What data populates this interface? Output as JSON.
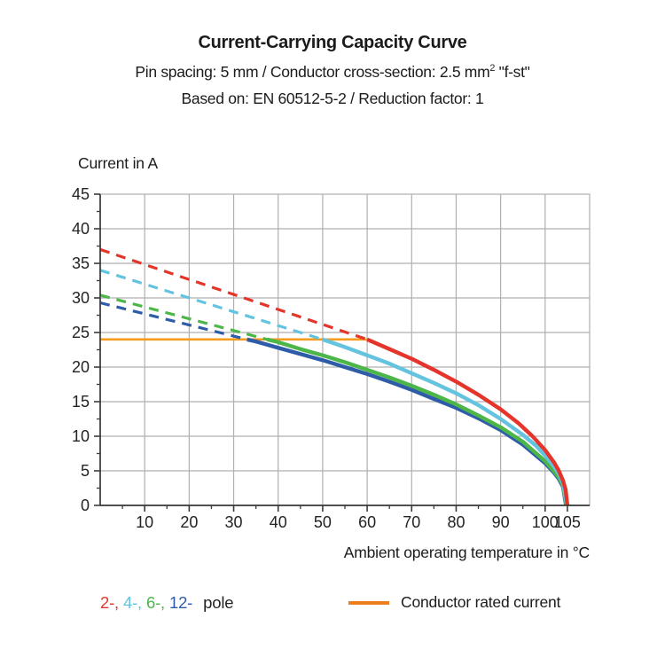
{
  "header": {
    "title": "Current-Carrying Capacity Curve",
    "subtitle_line1": {
      "pre": "Pin spacing: 5 mm / Conductor cross-section: 2.5 mm",
      "sup": "2",
      "post": " \"f-st\""
    },
    "subtitle_line2": "Based on: EN 60512-5-2 / Reduction factor: 1"
  },
  "chart_data": {
    "type": "line",
    "ylabel": "Current in A",
    "xlabel": "Ambient operating temperature in °C",
    "xlim": [
      0,
      110
    ],
    "ylim": [
      0,
      45
    ],
    "x_major_ticks": [
      10,
      20,
      30,
      40,
      50,
      60,
      70,
      80,
      90,
      100,
      105
    ],
    "x_minor_step": 5,
    "y_major_step": 5,
    "y_minor_step": 2.5,
    "grid": {
      "x_step": 10,
      "x_grid_max": 100,
      "y_step": 5,
      "color": "#AFAFAF"
    },
    "axis_color": "#3a3a3a",
    "rated_current": {
      "name": "Conductor rated current",
      "value_A": 24,
      "x_range": [
        0,
        60
      ],
      "color": "#F59B1E"
    },
    "series": [
      {
        "name": "2-pole",
        "color": "#E5352B",
        "dashed_points": [
          [
            0,
            37
          ],
          [
            60,
            24
          ]
        ],
        "solid_points": [
          [
            60,
            24
          ],
          [
            65,
            22.6
          ],
          [
            70,
            21.2
          ],
          [
            75,
            19.6
          ],
          [
            80,
            17.9
          ],
          [
            85,
            16
          ],
          [
            90,
            13.9
          ],
          [
            94,
            11.9
          ],
          [
            97,
            10.1
          ],
          [
            100,
            8
          ],
          [
            102,
            6.2
          ],
          [
            103,
            5.1
          ],
          [
            104,
            3.6
          ],
          [
            104.6,
            2.3
          ],
          [
            105,
            0
          ]
        ]
      },
      {
        "name": "4-pole",
        "color": "#64C3DE",
        "dashed_points": [
          [
            0,
            34
          ],
          [
            50,
            24
          ]
        ],
        "solid_points": [
          [
            50,
            24
          ],
          [
            55,
            22.9
          ],
          [
            60,
            21.7
          ],
          [
            65,
            20.5
          ],
          [
            70,
            19.1
          ],
          [
            75,
            17.7
          ],
          [
            80,
            16.2
          ],
          [
            85,
            14.5
          ],
          [
            90,
            12.5
          ],
          [
            95,
            10.2
          ],
          [
            98,
            8.6
          ],
          [
            100,
            7.2
          ],
          [
            102,
            5.6
          ],
          [
            103,
            4.6
          ],
          [
            104,
            3.2
          ],
          [
            104.9,
            0
          ]
        ]
      },
      {
        "name": "6-pole",
        "color": "#4CB648",
        "dashed_points": [
          [
            0,
            30.4
          ],
          [
            37.5,
            24
          ]
        ],
        "solid_points": [
          [
            37.5,
            24
          ],
          [
            40,
            23.6
          ],
          [
            45,
            22.6
          ],
          [
            50,
            21.7
          ],
          [
            55,
            20.7
          ],
          [
            60,
            19.6
          ],
          [
            65,
            18.5
          ],
          [
            70,
            17.3
          ],
          [
            75,
            16
          ],
          [
            80,
            14.6
          ],
          [
            85,
            13
          ],
          [
            90,
            11.3
          ],
          [
            95,
            9.2
          ],
          [
            100,
            6.4
          ],
          [
            102,
            4.9
          ],
          [
            103,
            4.1
          ],
          [
            104,
            2.9
          ],
          [
            104.8,
            0
          ]
        ]
      },
      {
        "name": "12-pole",
        "color": "#2E5CA8",
        "dashed_points": [
          [
            0,
            29.3
          ],
          [
            33,
            24
          ]
        ],
        "solid_points": [
          [
            33,
            24
          ],
          [
            35,
            23.7
          ],
          [
            40,
            22.8
          ],
          [
            45,
            21.9
          ],
          [
            50,
            21
          ],
          [
            55,
            20
          ],
          [
            60,
            19
          ],
          [
            65,
            17.9
          ],
          [
            70,
            16.7
          ],
          [
            75,
            15.4
          ],
          [
            80,
            14.1
          ],
          [
            85,
            12.6
          ],
          [
            90,
            10.9
          ],
          [
            95,
            8.8
          ],
          [
            100,
            6.1
          ],
          [
            102,
            4.7
          ],
          [
            103,
            3.9
          ],
          [
            104,
            2.7
          ],
          [
            104.7,
            0
          ]
        ]
      }
    ]
  },
  "legend": {
    "pole_tokens": [
      {
        "label": "2-,",
        "color": "#E5352B"
      },
      {
        "label": "4-,",
        "color": "#64C3DE"
      },
      {
        "label": "6-,",
        "color": "#4CB648"
      },
      {
        "label": "12-",
        "color": "#2E5CA8"
      }
    ],
    "pole_word": "pole",
    "rated_label": "Conductor rated current",
    "rated_color": "#EE7D1E"
  }
}
